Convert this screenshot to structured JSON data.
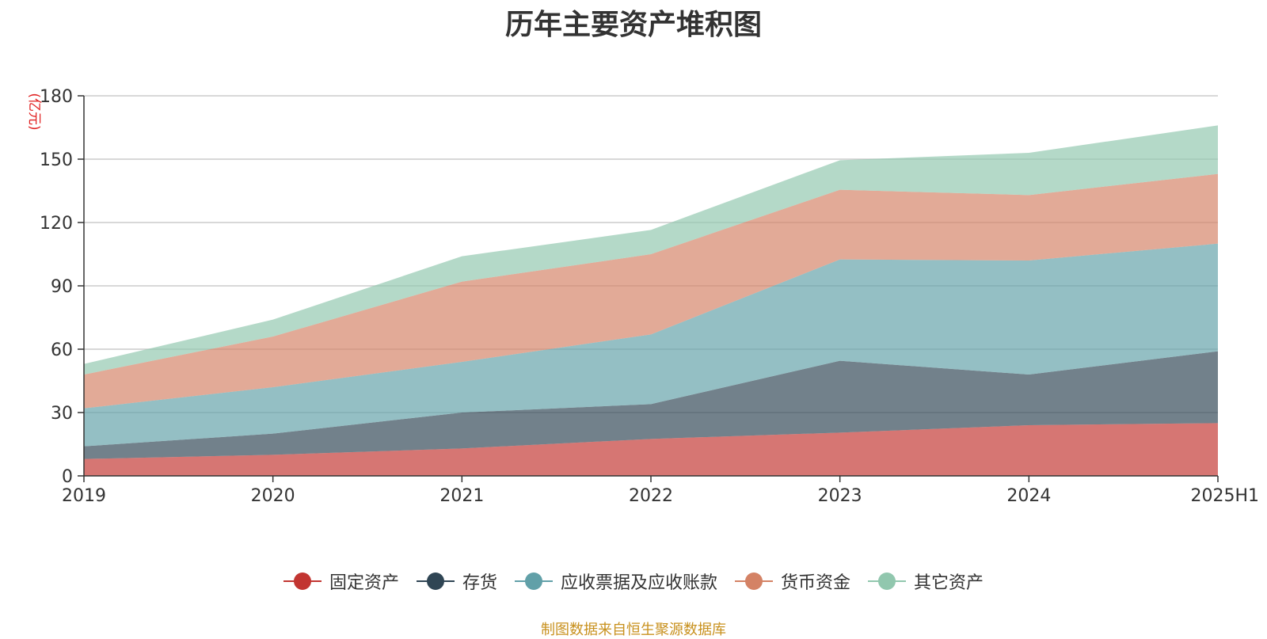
{
  "chart_data": {
    "type": "area",
    "stacked": true,
    "title": "历年主要资产堆积图",
    "unit_label": "(亿元)",
    "x": [
      "2019",
      "2020",
      "2021",
      "2022",
      "2023",
      "2024",
      "2025H1"
    ],
    "ylim": [
      0,
      180
    ],
    "yticks": [
      0,
      30,
      60,
      90,
      120,
      150,
      180
    ],
    "grid": true,
    "legend_position": "bottom",
    "series": [
      {
        "name": "固定资产",
        "color": "#c23531",
        "values": [
          8,
          10,
          13,
          17.5,
          20.5,
          24,
          25
        ]
      },
      {
        "name": "存货",
        "color": "#2f4554",
        "values": [
          6,
          10,
          17,
          16.5,
          34,
          24,
          34
        ]
      },
      {
        "name": "应收票据及应收账款",
        "color": "#61a0a8",
        "values": [
          18,
          22,
          24,
          33,
          48,
          54,
          51
        ]
      },
      {
        "name": "货币资金",
        "color": "#d48265",
        "values": [
          16,
          24,
          38,
          38,
          33,
          31,
          33
        ]
      },
      {
        "name": "其它资产",
        "color": "#91c7ae",
        "values": [
          5,
          8,
          12,
          11.5,
          14,
          20,
          23
        ]
      }
    ]
  },
  "source_note": "制图数据来自恒生聚源数据库"
}
